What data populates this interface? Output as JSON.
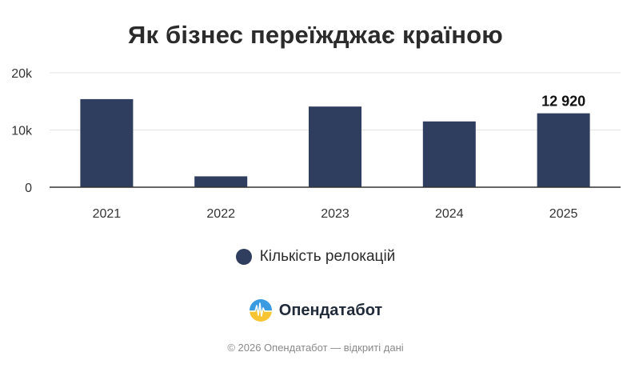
{
  "chart_data": {
    "type": "bar",
    "title": "Як бізнес переїжджає країною",
    "categories": [
      "2021",
      "2022",
      "2023",
      "2024",
      "2025"
    ],
    "series": [
      {
        "name": "Кількість релокацій",
        "values": [
          15400,
          1900,
          14100,
          11500,
          12920
        ],
        "color": "#2f3d5e"
      }
    ],
    "ylim": [
      0,
      20000
    ],
    "yticks": [
      {
        "value": 0,
        "label": "0"
      },
      {
        "value": 10000,
        "label": "10k"
      },
      {
        "value": 20000,
        "label": "20k"
      }
    ],
    "data_labels": [
      {
        "category": "2025",
        "text": "12 920"
      }
    ],
    "grid": true,
    "legend_position": "bottom"
  },
  "brand": {
    "name": "Опендатабот",
    "icon": "opendatabot-logo-icon"
  },
  "footer": {
    "text": "© 2026 Опендатабот — відкриті дані"
  },
  "colors": {
    "bar": "#2f3d5e",
    "grid": "#e3e3e3",
    "axis": "#333333"
  }
}
